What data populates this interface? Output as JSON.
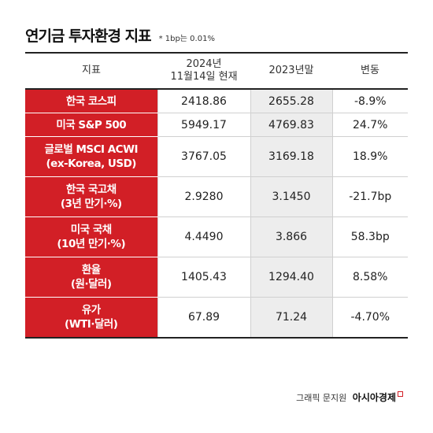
{
  "title": "연기금 투자환경 지표",
  "note": "* 1bp는 0.01%",
  "headers": {
    "indicator": "지표",
    "date_line1": "2024년",
    "date_line2": "11월14일 현재",
    "prev": "2023년말",
    "change": "변동"
  },
  "rows": [
    {
      "label1": "한국 코스피",
      "label2": "",
      "current": "2418.86",
      "prev": "2655.28",
      "change": "-8.9%"
    },
    {
      "label1": "미국 S&P 500",
      "label2": "",
      "current": "5949.17",
      "prev": "4769.83",
      "change": "24.7%"
    },
    {
      "label1": "글로벌 MSCI ACWI",
      "label2": "(ex-Korea, USD)",
      "current": "3767.05",
      "prev": "3169.18",
      "change": "18.9%"
    },
    {
      "label1": "한국 국고채",
      "label2": "(3년 만기·%)",
      "current": "2.9280",
      "prev": "3.1450",
      "change": "-21.7bp"
    },
    {
      "label1": "미국 국채",
      "label2": "(10년 만기·%)",
      "current": "4.4490",
      "prev": "3.866",
      "change": "58.3bp"
    },
    {
      "label1": "환율",
      "label2": "(원·달러)",
      "current": "1405.43",
      "prev": "1294.40",
      "change": "8.58%"
    },
    {
      "label1": "유가",
      "label2": "(WTI·달러)",
      "current": "67.89",
      "prev": "71.24",
      "change": "-4.70%"
    }
  ],
  "credit": {
    "author": "그래픽 문지원",
    "brand": "아시아경제"
  },
  "colors": {
    "label_bg": "#d21f26",
    "prev_col_bg": "#ededed"
  }
}
